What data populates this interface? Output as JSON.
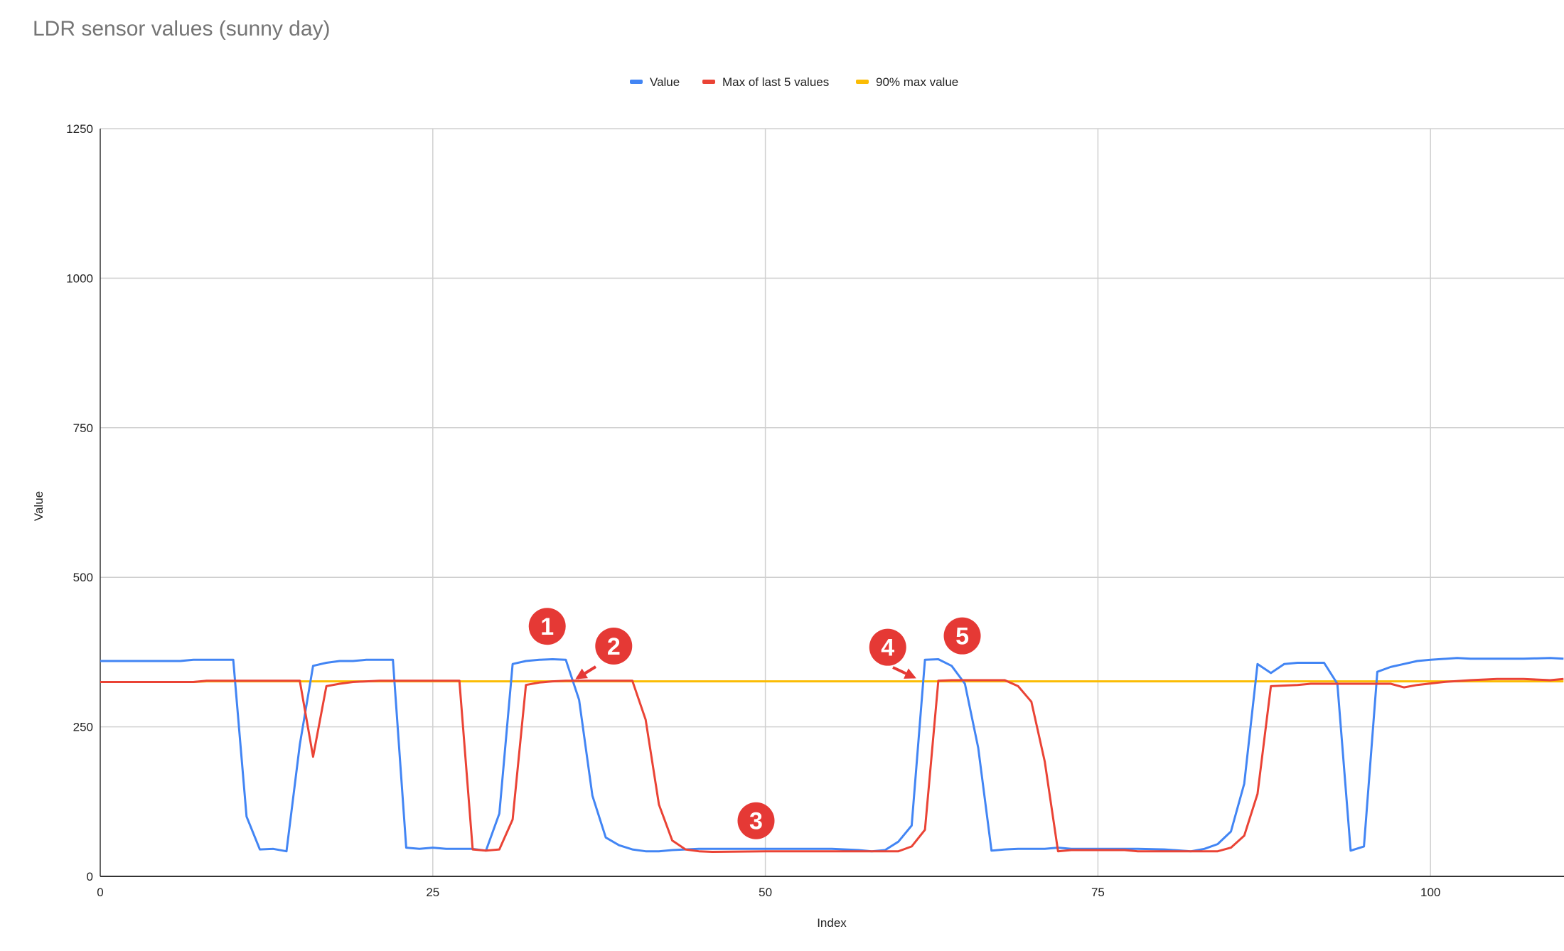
{
  "title": "LDR sensor values (sunny day)",
  "chart_data": {
    "type": "line",
    "title": "LDR sensor values (sunny day)",
    "xlabel": "Index",
    "ylabel": "Value",
    "xlim": [
      0,
      110
    ],
    "ylim": [
      0,
      1250
    ],
    "x_ticks": [
      0,
      25,
      50,
      75,
      100
    ],
    "y_ticks": [
      0,
      250,
      500,
      750,
      1000,
      1250
    ],
    "grid": true,
    "legend_position": "top",
    "series": [
      {
        "name": "Value",
        "color": "#4285f4",
        "points": [
          [
            0,
            360
          ],
          [
            6,
            360
          ],
          [
            7,
            362
          ],
          [
            10,
            362
          ],
          [
            11,
            100
          ],
          [
            12,
            45
          ],
          [
            13,
            46
          ],
          [
            14,
            42
          ],
          [
            15,
            220
          ],
          [
            16,
            352
          ],
          [
            17,
            357
          ],
          [
            18,
            360
          ],
          [
            19,
            360
          ],
          [
            20,
            362
          ],
          [
            22,
            362
          ],
          [
            23,
            48
          ],
          [
            24,
            46
          ],
          [
            25,
            48
          ],
          [
            26,
            46
          ],
          [
            27,
            46
          ],
          [
            28,
            46
          ],
          [
            29,
            43
          ],
          [
            30,
            105
          ],
          [
            31,
            355
          ],
          [
            32,
            360
          ],
          [
            33,
            362
          ],
          [
            34,
            363
          ],
          [
            35,
            362
          ],
          [
            36,
            295
          ],
          [
            37,
            135
          ],
          [
            38,
            65
          ],
          [
            39,
            52
          ],
          [
            40,
            45
          ],
          [
            41,
            42
          ],
          [
            42,
            42
          ],
          [
            43,
            44
          ],
          [
            44,
            45
          ],
          [
            45,
            46
          ],
          [
            50,
            46
          ],
          [
            55,
            46
          ],
          [
            57,
            44
          ],
          [
            58,
            42
          ],
          [
            59,
            44
          ],
          [
            60,
            58
          ],
          [
            61,
            85
          ],
          [
            62,
            362
          ],
          [
            63,
            363
          ],
          [
            64,
            352
          ],
          [
            65,
            322
          ],
          [
            66,
            215
          ],
          [
            67,
            43
          ],
          [
            68,
            45
          ],
          [
            69,
            46
          ],
          [
            71,
            46
          ],
          [
            72,
            48
          ],
          [
            73,
            46
          ],
          [
            77,
            46
          ],
          [
            78,
            46
          ],
          [
            80,
            45
          ],
          [
            82,
            42
          ],
          [
            83,
            46
          ],
          [
            84,
            54
          ],
          [
            85,
            75
          ],
          [
            86,
            155
          ],
          [
            87,
            355
          ],
          [
            88,
            340
          ],
          [
            89,
            355
          ],
          [
            90,
            357
          ],
          [
            92,
            357
          ],
          [
            93,
            322
          ],
          [
            94,
            43
          ],
          [
            95,
            50
          ],
          [
            96,
            342
          ],
          [
            97,
            350
          ],
          [
            98,
            355
          ],
          [
            99,
            360
          ],
          [
            100,
            362
          ],
          [
            102,
            365
          ],
          [
            103,
            364
          ],
          [
            107,
            364
          ],
          [
            109,
            365
          ],
          [
            110,
            364
          ]
        ]
      },
      {
        "name": "Max of last 5 values",
        "color": "#ea4335",
        "points": [
          [
            0,
            325
          ],
          [
            7,
            325
          ],
          [
            8,
            327
          ],
          [
            15,
            327
          ],
          [
            16,
            200
          ],
          [
            17,
            318
          ],
          [
            18,
            322
          ],
          [
            19,
            325
          ],
          [
            21,
            327
          ],
          [
            27,
            327
          ],
          [
            28,
            45
          ],
          [
            29,
            43
          ],
          [
            30,
            45
          ],
          [
            31,
            95
          ],
          [
            32,
            320
          ],
          [
            33,
            324
          ],
          [
            34,
            326
          ],
          [
            35,
            327
          ],
          [
            40,
            327
          ],
          [
            41,
            262
          ],
          [
            42,
            120
          ],
          [
            43,
            60
          ],
          [
            44,
            45
          ],
          [
            45,
            42
          ],
          [
            46,
            41
          ],
          [
            50,
            42
          ],
          [
            55,
            42
          ],
          [
            60,
            42
          ],
          [
            61,
            50
          ],
          [
            62,
            78
          ],
          [
            63,
            327
          ],
          [
            64,
            328
          ],
          [
            68,
            328
          ],
          [
            69,
            318
          ],
          [
            70,
            292
          ],
          [
            71,
            192
          ],
          [
            72,
            42
          ],
          [
            73,
            44
          ],
          [
            77,
            44
          ],
          [
            78,
            42
          ],
          [
            80,
            42
          ],
          [
            84,
            42
          ],
          [
            85,
            48
          ],
          [
            86,
            68
          ],
          [
            87,
            138
          ],
          [
            88,
            318
          ],
          [
            90,
            320
          ],
          [
            91,
            322
          ],
          [
            93,
            322
          ],
          [
            97,
            322
          ],
          [
            98,
            316
          ],
          [
            99,
            320
          ],
          [
            101,
            325
          ],
          [
            103,
            328
          ],
          [
            105,
            330
          ],
          [
            107,
            330
          ],
          [
            109,
            328
          ],
          [
            110,
            330
          ]
        ]
      },
      {
        "name": "90% max value",
        "color": "#fbbc04",
        "points": [
          [
            0,
            325
          ],
          [
            7,
            325
          ],
          [
            8,
            326
          ],
          [
            110,
            326
          ]
        ]
      }
    ],
    "annotations": [
      {
        "label": "1",
        "x": 33.6,
        "y": 418
      },
      {
        "label": "2",
        "x": 38.6,
        "y": 385
      },
      {
        "label": "3",
        "x": 49.3,
        "y": 93
      },
      {
        "label": "4",
        "x": 59.2,
        "y": 383
      },
      {
        "label": "5",
        "x": 64.8,
        "y": 402
      }
    ]
  }
}
